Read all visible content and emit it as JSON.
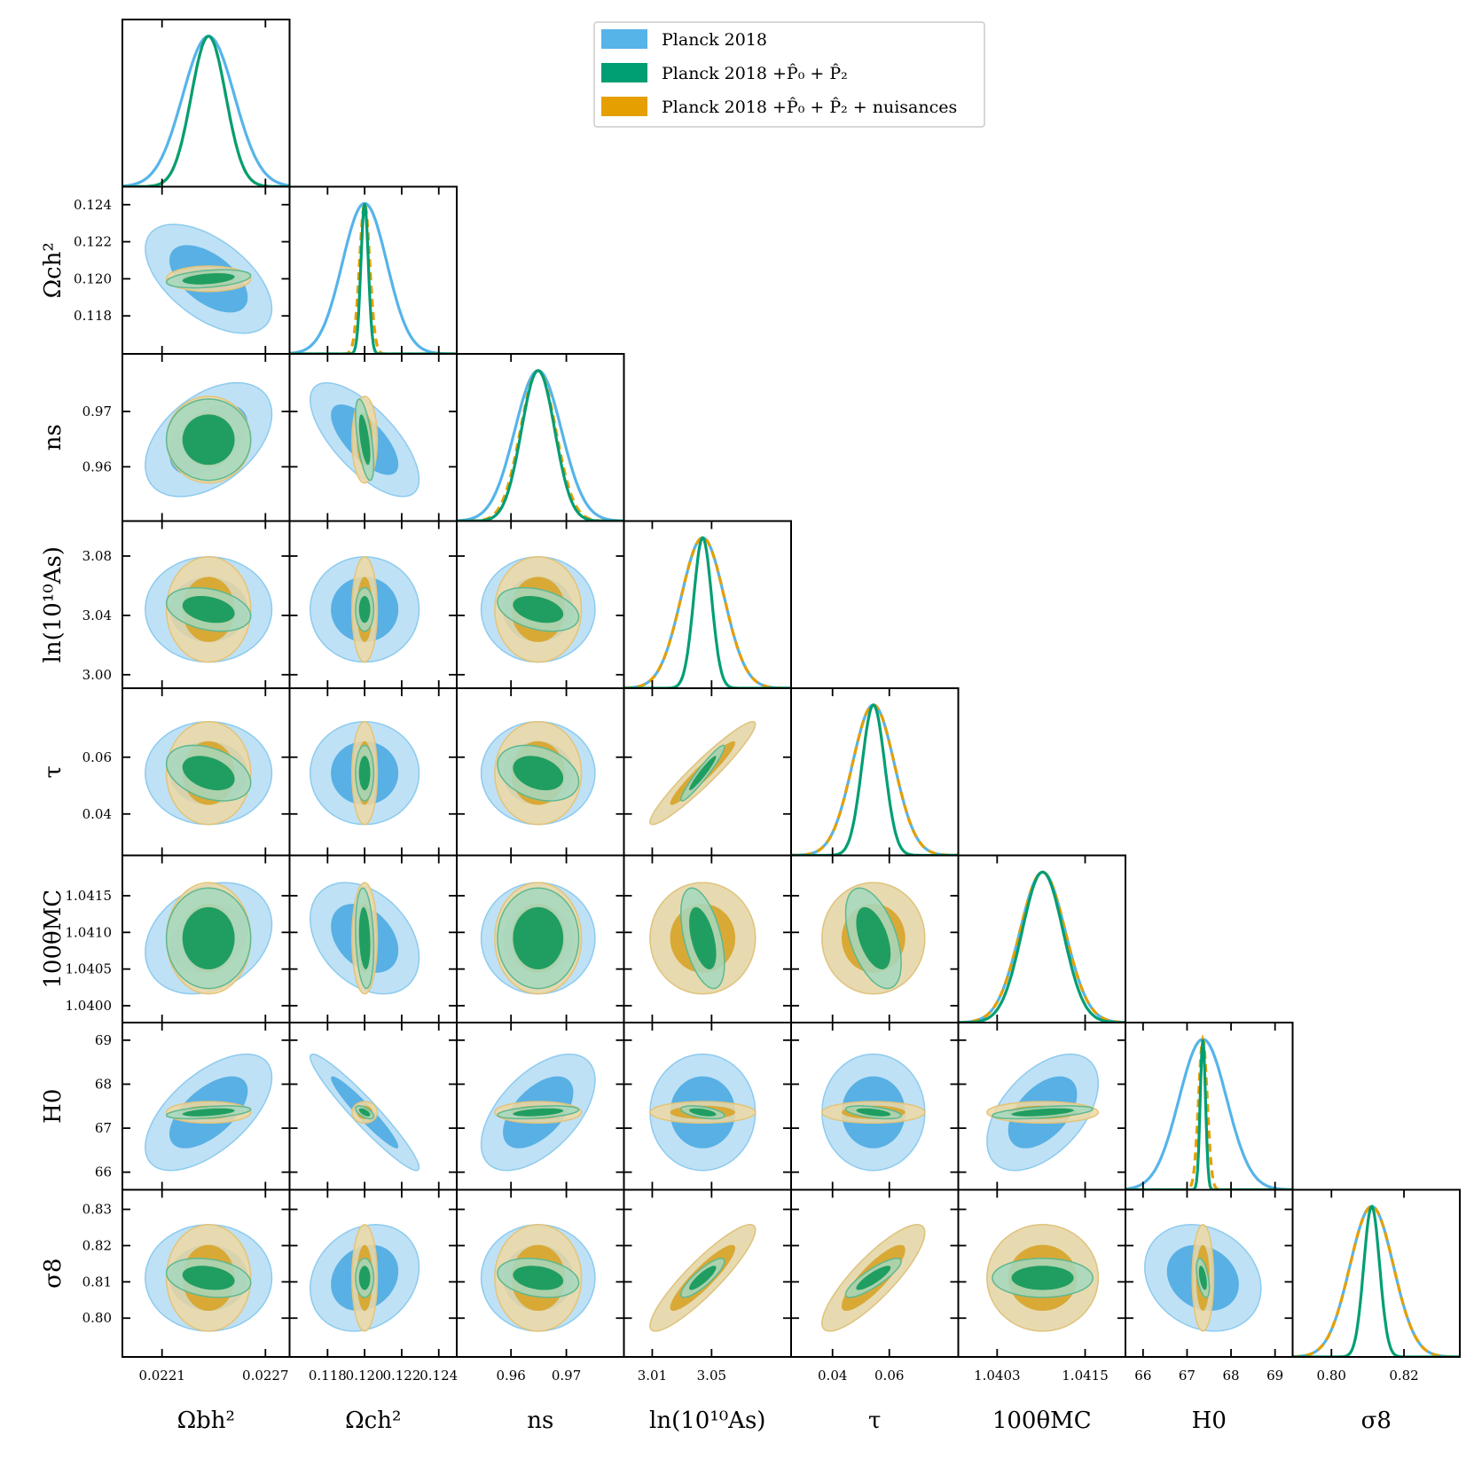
{
  "chart_data": {
    "type": "triangle-corner",
    "title": "",
    "legend": {
      "placement": "top-right",
      "entries": [
        {
          "label": "Planck 2018",
          "color": "#56B4E9"
        },
        {
          "label": "Planck 2018 +P̂₀ + P̂₂",
          "color": "#009E73"
        },
        {
          "label": "Planck 2018 +P̂₀ + P̂₂ + nuisances",
          "color": "#E69F00"
        }
      ]
    },
    "series_colors": {
      "planck": "#56B4E9",
      "p0p2": "#009E73",
      "nuis": "#E69F00"
    },
    "params": [
      {
        "key": "omb",
        "label": "Ωbh²",
        "range": [
          0.02187,
          0.02284
        ],
        "ticks": [
          0.0221,
          0.0227
        ],
        "tick_labels": [
          "0.0221",
          "0.0227"
        ],
        "mean": 0.02237,
        "sd": {
          "planck": 0.00015,
          "p0p2": 0.0001,
          "nuis": 0.0001
        }
      },
      {
        "key": "omc",
        "label": "Ωch²",
        "range": [
          0.11595,
          0.12497
        ],
        "ticks": [
          0.118,
          0.12,
          0.122,
          0.124
        ],
        "tick_labels": [
          "0.118",
          "0.120",
          "0.122",
          "0.124"
        ],
        "mean": 0.12,
        "sd": {
          "planck": 0.0012,
          "p0p2": 0.0002,
          "nuis": 0.00028
        }
      },
      {
        "key": "ns",
        "label": "ns",
        "range": [
          0.9502,
          0.9804
        ],
        "ticks": [
          0.96,
          0.97
        ],
        "tick_labels": [
          "0.96",
          "0.97"
        ],
        "mean": 0.9649,
        "sd": {
          "planck": 0.0042,
          "p0p2": 0.003,
          "nuis": 0.0032
        }
      },
      {
        "key": "lnas",
        "label": "ln(10¹⁰As)",
        "range": [
          2.9909,
          3.1036
        ],
        "ticks": [
          3.0,
          3.04,
          3.08
        ],
        "tick_labels": [
          "3.00",
          "3.04",
          "3.08"
        ],
        "ticks_x": [
          3.01,
          3.05
        ],
        "tick_labels_x": [
          "3.01",
          "3.05"
        ],
        "mean": 3.044,
        "sd": {
          "planck": 0.0145,
          "p0p2": 0.006,
          "nuis": 0.0145
        }
      },
      {
        "key": "tau",
        "label": "τ",
        "range": [
          0.0254,
          0.0843
        ],
        "ticks": [
          0.04,
          0.06
        ],
        "tick_labels": [
          "0.04",
          "0.06"
        ],
        "mean": 0.0544,
        "sd": {
          "planck": 0.0074,
          "p0p2": 0.004,
          "nuis": 0.0074
        }
      },
      {
        "key": "theta",
        "label": "100θMC",
        "range": [
          1.03977,
          1.04205
        ],
        "ticks": [
          1.04,
          1.0405,
          1.041,
          1.0415
        ],
        "tick_labels": [
          "1.0400",
          "1.0405",
          "1.0410",
          "1.0415"
        ],
        "ticks_x": [
          1.0403,
          1.0415
        ],
        "tick_labels_x": [
          "1.0403",
          "1.0415"
        ],
        "mean": 1.04092,
        "sd": {
          "planck": 0.00031,
          "p0p2": 0.00028,
          "nuis": 0.00031
        }
      },
      {
        "key": "h0",
        "label": "H0",
        "range": [
          65.6,
          69.4
        ],
        "ticks": [
          66,
          67,
          68,
          69
        ],
        "tick_labels": [
          "66",
          "67",
          "68",
          "69"
        ],
        "mean": 67.36,
        "sd": {
          "planck": 0.54,
          "p0p2": 0.06,
          "nuis": 0.1
        }
      },
      {
        "key": "s8",
        "label": "σ8",
        "range": [
          0.7893,
          0.8354
        ],
        "ticks": [
          0.8,
          0.81,
          0.82,
          0.83
        ],
        "tick_labels": [
          "0.80",
          "0.81",
          "0.82",
          "0.83"
        ],
        "ticks_x": [
          0.8,
          0.82
        ],
        "tick_labels_x": [
          "0.80",
          "0.82"
        ],
        "mean": 0.8111,
        "sd": {
          "planck": 0.006,
          "p0p2": 0.0022,
          "nuis": 0.006
        }
      }
    ],
    "correlations": {
      "planck": {
        "omc|omb": -0.55,
        "ns|omb": 0.45,
        "ns|omc": -0.7,
        "h0|omb": 0.6,
        "h0|omc": -0.95,
        "h0|ns": 0.55,
        "h0|theta": 0.5,
        "lnas|tau": 0.95,
        "s8|lnas": 0.9,
        "s8|tau": 0.85,
        "s8|omc": 0.2,
        "s8|h0": -0.2,
        "theta|omb": 0.25,
        "theta|omc": -0.35
      },
      "p0p2": {
        "omc|omb": 0.35,
        "ns|omc": -0.6,
        "lnas|omb": -0.3,
        "lnas|ns": -0.35,
        "tau|omb": -0.35,
        "tau|ns": -0.3,
        "lnas|tau": 0.95,
        "theta|lnas": -0.5,
        "theta|tau": -0.5,
        "h0|omb": 0.45,
        "h0|omc": -0.6,
        "h0|ns": 0.4,
        "h0|lnas": -0.5,
        "h0|tau": -0.5,
        "h0|theta": 0.5,
        "s8|lnas": 0.85,
        "s8|tau": 0.85,
        "s8|h0": -0.5,
        "s8|omb": -0.25,
        "s8|ns": -0.25,
        "theta|omc": -0.2
      },
      "nuis": {
        "lnas|tau": 0.95,
        "s8|lnas": 0.9,
        "s8|tau": 0.85
      }
    },
    "contour_levels": [
      "68%",
      "95%"
    ]
  }
}
